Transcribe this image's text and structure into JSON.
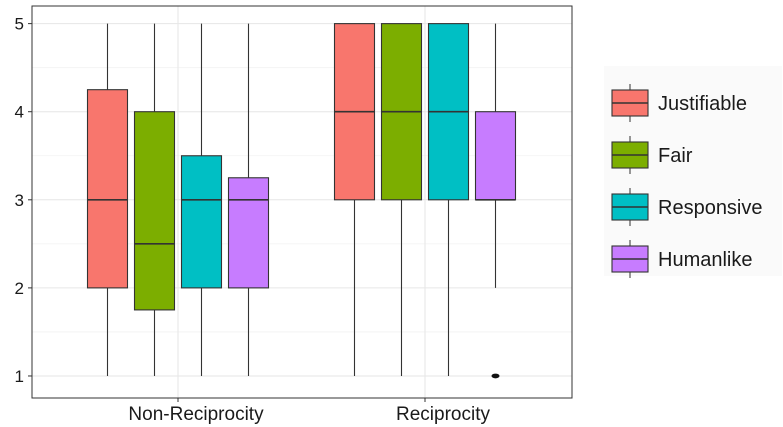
{
  "chart_data": {
    "type": "boxplot",
    "categories": [
      "Non-Reciprocity",
      "Reciprocity"
    ],
    "ylim": [
      0.75,
      5.2
    ],
    "yticks": [
      1,
      2,
      3,
      4,
      5
    ],
    "xlabel": "",
    "ylabel": "",
    "title": "",
    "grid": true,
    "legend_position": "right",
    "series": [
      {
        "name": "Justifiable",
        "color": "#F8766D",
        "boxes": [
          {
            "category": "Non-Reciprocity",
            "min": 1,
            "q1": 2,
            "median": 3,
            "q3": 4.25,
            "max": 5,
            "outliers": []
          },
          {
            "category": "Reciprocity",
            "min": 1,
            "q1": 3,
            "median": 4,
            "q3": 5,
            "max": 5,
            "outliers": []
          }
        ]
      },
      {
        "name": "Fair",
        "color": "#7CAE00",
        "boxes": [
          {
            "category": "Non-Reciprocity",
            "min": 1,
            "q1": 1.75,
            "median": 2.5,
            "q3": 4,
            "max": 5,
            "outliers": []
          },
          {
            "category": "Reciprocity",
            "min": 1,
            "q1": 3,
            "median": 4,
            "q3": 5,
            "max": 5,
            "outliers": []
          }
        ]
      },
      {
        "name": "Responsive",
        "color": "#00BFC4",
        "boxes": [
          {
            "category": "Non-Reciprocity",
            "min": 1,
            "q1": 2,
            "median": 3,
            "q3": 3.5,
            "max": 5,
            "outliers": []
          },
          {
            "category": "Reciprocity",
            "min": 1,
            "q1": 3,
            "median": 4,
            "q3": 5,
            "max": 5,
            "outliers": []
          }
        ]
      },
      {
        "name": "Humanlike",
        "color": "#C77CFF",
        "boxes": [
          {
            "category": "Non-Reciprocity",
            "min": 1,
            "q1": 2,
            "median": 3,
            "q3": 3.25,
            "max": 5,
            "outliers": []
          },
          {
            "category": "Reciprocity",
            "min": 2,
            "q1": 3,
            "median": 3,
            "q3": 4,
            "max": 5,
            "outliers": [
              1
            ]
          }
        ]
      }
    ]
  }
}
